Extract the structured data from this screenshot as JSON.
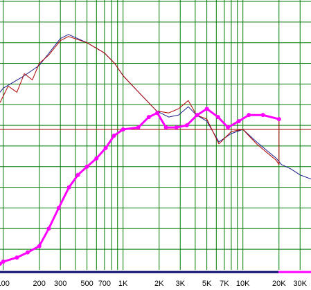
{
  "chart_data": {
    "type": "line",
    "log_x": true,
    "xlim": [
      94,
      37000
    ],
    "ylim": [
      0,
      13
    ],
    "xticks": [
      {
        "value": 100,
        "label": "100"
      },
      200,
      300,
      500,
      700,
      {
        "value": 1000,
        "label": "1K"
      },
      {
        "value": 2000,
        "label": "2K"
      },
      {
        "value": 3000,
        "label": "3K"
      },
      {
        "value": 5000,
        "label": "5K"
      },
      {
        "value": 7000,
        "label": "7K"
      },
      {
        "value": 10000,
        "label": "10K"
      },
      {
        "value": 20000,
        "label": "20K"
      },
      {
        "value": 30000,
        "label": "30K"
      }
    ],
    "xminor": [
      400,
      600,
      800,
      900,
      4000,
      6000,
      8000,
      9000
    ],
    "ygrid": [
      1,
      2,
      3,
      4,
      5,
      6,
      7,
      8,
      9,
      10,
      11,
      12,
      13
    ],
    "hline": 6.8,
    "hline_color": "#a00000",
    "grid_color": "#007a00",
    "series": [
      {
        "color": "#1a1a8c",
        "width": 1,
        "marker": false,
        "x": [
          94,
          100,
          150,
          200,
          300,
          350,
          500,
          700,
          850,
          1000,
          1300,
          1900,
          2400,
          2900,
          3500,
          4100,
          5000,
          6300,
          8000,
          10000,
          13000,
          19000,
          21000,
          25000,
          30000,
          37000
        ],
        "values": [
          8.6,
          8.8,
          9.4,
          9.9,
          11.2,
          11.4,
          11.0,
          10.5,
          10.0,
          9.4,
          8.7,
          7.7,
          7.4,
          7.5,
          7.9,
          7.5,
          7.2,
          6.2,
          6.6,
          6.8,
          6.2,
          5.4,
          5.1,
          4.9,
          4.6,
          4.4
        ]
      },
      {
        "color": "#b00000",
        "width": 1,
        "marker": false,
        "x": [
          94,
          110,
          130,
          150,
          175,
          200,
          240,
          300,
          350,
          500,
          700,
          850,
          1000,
          1300,
          1900,
          2400,
          2900,
          3500,
          4100,
          5000,
          6300,
          8000,
          10000,
          13000,
          19000,
          20000,
          20000,
          20000
        ],
        "values": [
          8.1,
          8.9,
          8.6,
          9.5,
          9.2,
          10.0,
          10.4,
          11.1,
          11.3,
          11.0,
          10.5,
          10.0,
          9.4,
          8.7,
          7.7,
          7.6,
          7.8,
          8.2,
          7.5,
          7.3,
          6.1,
          6.7,
          6.8,
          6.1,
          5.3,
          5.1,
          6.0,
          7.2
        ]
      },
      {
        "color": "#ff00ff",
        "width": 3,
        "marker": true,
        "x": [
          94,
          100,
          130,
          160,
          200,
          240,
          290,
          354,
          420,
          500,
          600,
          716,
          841,
          1000,
          1340,
          1640,
          1930,
          2280,
          2790,
          3400,
          4150,
          5000,
          6200,
          7500,
          9230,
          11200,
          14700,
          20000
        ],
        "values": [
          0.3,
          0.4,
          0.6,
          0.85,
          1.15,
          2.0,
          3.0,
          4.0,
          4.6,
          5.0,
          5.4,
          5.9,
          6.5,
          6.8,
          6.9,
          7.4,
          7.6,
          6.9,
          6.9,
          7.0,
          7.5,
          7.8,
          7.4,
          6.9,
          7.2,
          7.5,
          7.5,
          7.3
        ]
      }
    ]
  }
}
